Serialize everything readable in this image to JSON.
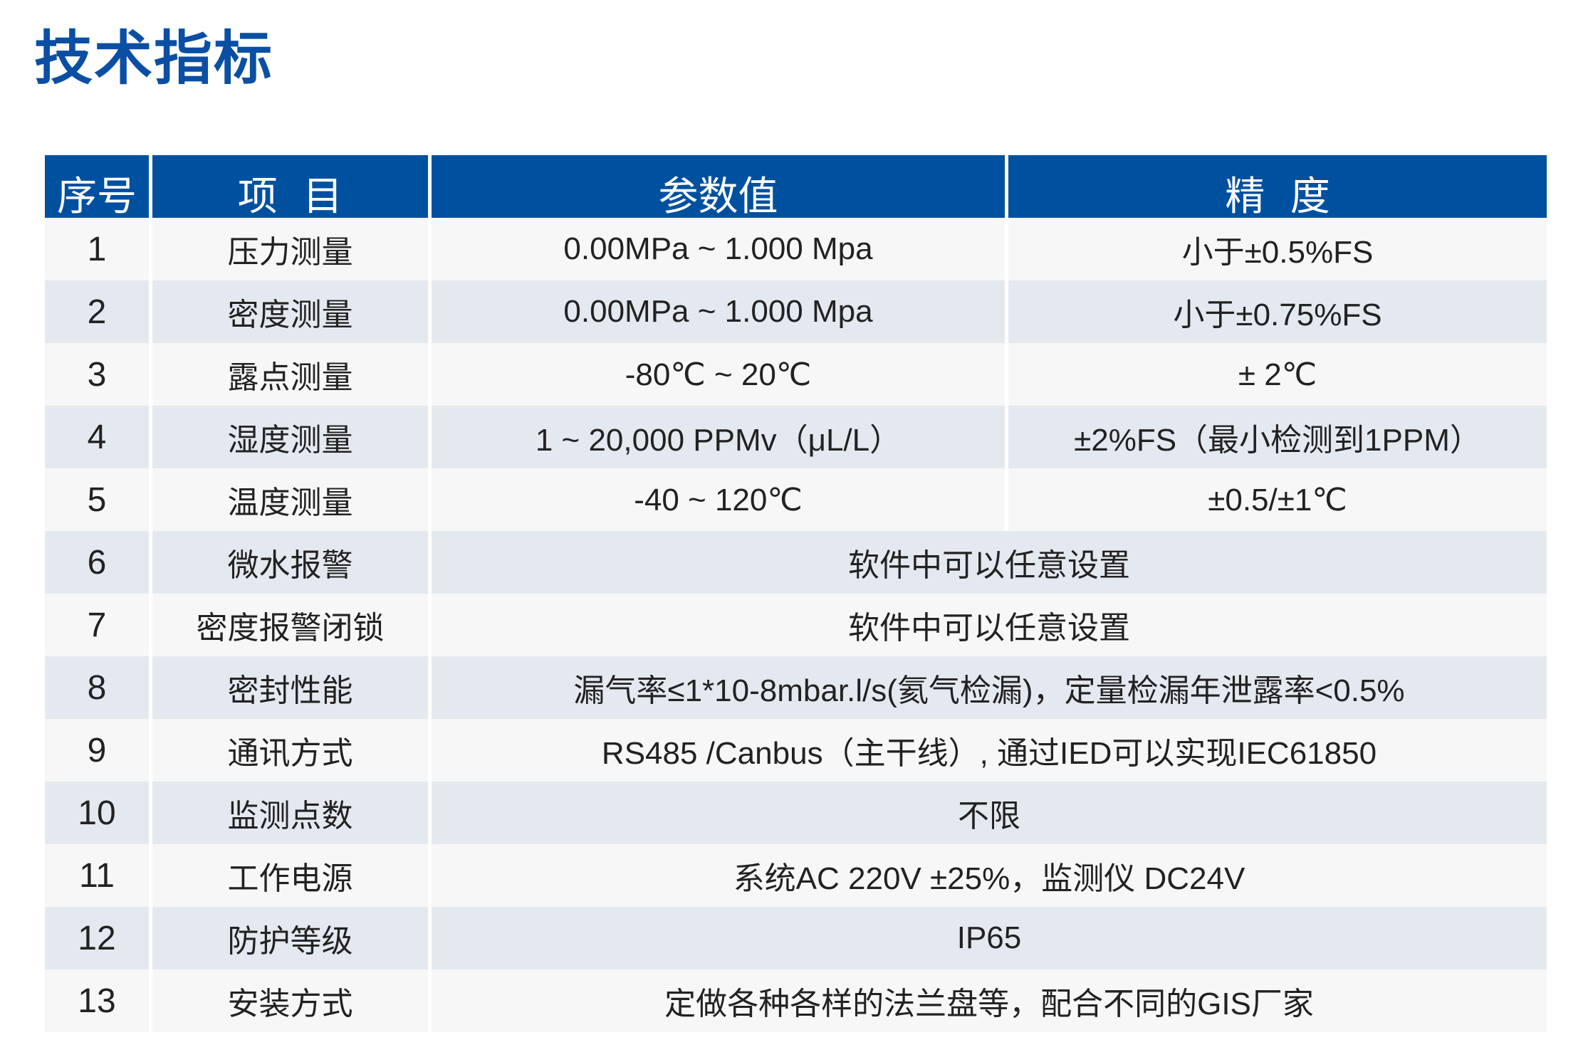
{
  "title": "技术指标",
  "colors": {
    "header_bg": "#0050a0",
    "title": "#0a4fa3",
    "row_odd": "#f7f7f7",
    "row_even": "#e4e9f0"
  },
  "table": {
    "headers": [
      "序号",
      "项  目",
      "参数值",
      "精  度"
    ],
    "rows": [
      {
        "no": "1",
        "item": "压力测量",
        "value": "0.00MPa ~ 1.000 Mpa",
        "accuracy": "小于±0.5%FS"
      },
      {
        "no": "2",
        "item": "密度测量",
        "value": "0.00MPa ~ 1.000 Mpa",
        "accuracy": "小于±0.75%FS"
      },
      {
        "no": "3",
        "item": "露点测量",
        "value": "-80℃ ~ 20℃",
        "accuracy": "± 2℃"
      },
      {
        "no": "4",
        "item": "湿度测量",
        "value": "1 ~ 20,000 PPMv（μL/L）",
        "accuracy": "±2%FS（最小检测到1PPM）"
      },
      {
        "no": "5",
        "item": "温度测量",
        "value": "-40 ~ 120℃",
        "accuracy": "±0.5/±1℃"
      },
      {
        "no": "6",
        "item": "微水报警",
        "value": "软件中可以任意设置"
      },
      {
        "no": "7",
        "item": "密度报警闭锁",
        "value": "软件中可以任意设置"
      },
      {
        "no": "8",
        "item": "密封性能",
        "value": "漏气率≤1*10-8mbar.l/s(氦气检漏)，定量检漏年泄露率<0.5%"
      },
      {
        "no": "9",
        "item": "通讯方式",
        "value": "RS485 /Canbus（主干线）, 通过IED可以实现IEC61850"
      },
      {
        "no": "10",
        "item": "监测点数",
        "value": "不限"
      },
      {
        "no": "11",
        "item": "工作电源",
        "value": "系统AC 220V ±25%，监测仪 DC24V"
      },
      {
        "no": "12",
        "item": "防护等级",
        "value": "IP65"
      },
      {
        "no": "13",
        "item": "安装方式",
        "value": "定做各种各样的法兰盘等，配合不同的GIS厂家"
      }
    ]
  }
}
